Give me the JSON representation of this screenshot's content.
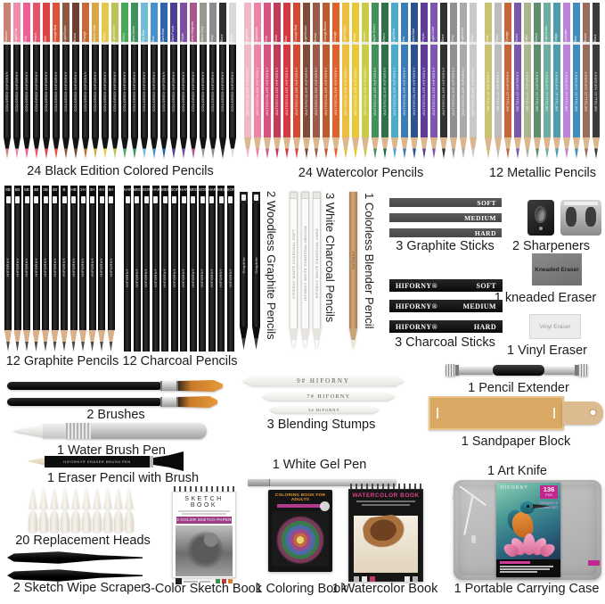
{
  "captions": {
    "black_colored": "24 Black Edition Colored Pencils",
    "watercolor": "24 Watercolor Pencils",
    "metallic": "12 Metallic Pencils",
    "graphite": "12 Graphite Pencils",
    "charcoal": "12 Charcoal Pencils",
    "woodless": "2 Woodless Graphite Pencils",
    "white_charcoal": "3 White Charcoal Pencils",
    "blender": "1 Colorless Blender Pencil",
    "graphite_sticks": "3 Graphite Sticks",
    "sharpeners": "2 Sharpeners",
    "kneaded_eraser": "1 kneaded Eraser",
    "charcoal_sticks": "3 Charcoal Sticks",
    "vinyl_eraser": "1 Vinyl Eraser",
    "brushes": "2 Brushes",
    "blending_stumps": "3 Blending Stumps",
    "pencil_extender": "1 Pencil Extender",
    "water_brush_pen": "1 Water Brush Pen",
    "sandpaper_block": "1 Sandpaper Block",
    "eraser_pencil": "1 Eraser Pencil with Brush",
    "white_gel_pen": "1 White Gel Pen",
    "art_knife": "1 Art Knife",
    "replacement_heads": "20 Replacement Heads",
    "scraper": "2 Sketch Wipe Scraper",
    "sketch_book": "3-Color Sketch Book",
    "coloring_book": "1 Coloring Book",
    "watercolor_book": "1 Watercolor Book",
    "carrying_case": "1 Portable Carrying Case"
  },
  "pencil_sets": {
    "black_colored": {
      "brand": "HIFORNY",
      "body_text": "COLORED",
      "names": [
        "Salmon",
        "Light Pink",
        "Pink",
        "Peach",
        "Red",
        "Orange Red",
        "Light Brown",
        "Brown",
        "Orange",
        "Amber Gold",
        "Yellow",
        "Light Green",
        "Green",
        "Dark Green",
        "Sky Blue",
        "Blue",
        "Dark Blue",
        "Dark Purple",
        "Purple",
        "Deep Magenta",
        "Warm Grey",
        "Grey",
        "Black",
        "White"
      ],
      "colors": [
        "#c98273",
        "#f08bab",
        "#ec5f95",
        "#e4546b",
        "#dd4145",
        "#e05238",
        "#8d5a41",
        "#6f4032",
        "#c86a38",
        "#d9a844",
        "#e3c94f",
        "#bcc355",
        "#49a858",
        "#3f9160",
        "#72bcd8",
        "#4492cf",
        "#2f63ab",
        "#4a3f92",
        "#7c4fa0",
        "#a85590",
        "#99988e",
        "#8c8c8c",
        "#2e2e2e",
        "#d9d9d9"
      ]
    },
    "watercolor": {
      "brand": "HIFORNY",
      "body_text": "WATERCOLOR",
      "names": [
        "Light Pink",
        "Light Rose",
        "Pink",
        "Rose",
        "Red",
        "Orange Red",
        "Light Brown",
        "Brown",
        "Orange Brown",
        "Orange",
        "Light Yellow",
        "Yellow",
        "Lemon",
        "Apple Green",
        "Green",
        "Light Blue",
        "Sea",
        "Dark Blue",
        "Purple",
        "Light Violet",
        "Black",
        "Grey",
        "Light Grey",
        "Silver"
      ],
      "colors": [
        "#f0b9c7",
        "#ee83a6",
        "#d65480",
        "#c23a5c",
        "#d23a40",
        "#d44930",
        "#7d4b39",
        "#9a5c46",
        "#bb5c30",
        "#e4602a",
        "#eabf3e",
        "#e8c934",
        "#c9cc4b",
        "#41915a",
        "#2f7048",
        "#4aabca",
        "#3a7cb3",
        "#2d5191",
        "#5e3c99",
        "#7e55b2",
        "#303030",
        "#8f8f8f",
        "#aaaaa8",
        "#c9c9c9"
      ]
    },
    "metallic": {
      "brand": "HIFORNY",
      "body_text": "METALLIC",
      "names": [
        "Gold",
        "Silver",
        "Orange",
        "Violet",
        "Olive",
        "Green",
        "Light Green",
        "Indigo",
        "Lavender",
        "Blue",
        "Brown",
        "Black"
      ],
      "colors": [
        "#c9c272",
        "#bcbcbc",
        "#c2683a",
        "#7a58ab",
        "#aab48e",
        "#5d8e6d",
        "#6fae9e",
        "#4f9dac",
        "#bb82d6",
        "#3f8dbb",
        "#9a6c5c",
        "#3b3b3b"
      ]
    },
    "graphite": {
      "brand": "HIFORNY",
      "grades": [
        "8B",
        "6B",
        "5B",
        "4B",
        "3B",
        "2B",
        "B",
        "HB",
        "2H",
        "3H",
        "4H",
        "5H"
      ]
    },
    "charcoal": {
      "brand": "HIFORNY",
      "grades": [
        "HARD",
        "MED",
        "SOFT",
        "HARD",
        "MED",
        "SOFT",
        "HARD",
        "MED",
        "SOFT",
        "HARD",
        "MED",
        "SOFT"
      ]
    },
    "woodless": {
      "body_text": "Graphite"
    },
    "white_charcoal": {
      "texts": [
        "HIFORNY WHITE CHARCOAL SOFT",
        "HIFORNY WHITE CHARCOAL MEDIUM",
        "HIFORNY WHITE CHARCOAL HARD"
      ]
    },
    "blender": {
      "body_text": "HIFORNY"
    }
  },
  "sticks": {
    "graphite": {
      "grades": [
        "SOFT",
        "MEDIUM",
        "HARD"
      ]
    },
    "charcoal": {
      "brand": "HIFORNY®",
      "grades": [
        "SOFT",
        "MEDIUM",
        "HARD"
      ]
    }
  },
  "erasers": {
    "kneaded_text": "Kneaded Eraser",
    "vinyl_text": "Vinyl Eraser"
  },
  "stumps": {
    "texts": [
      "9#  HIFORNY",
      "7#  HIFORNY",
      "5#  HIFORNY"
    ]
  },
  "eraser_pencil_text": "HIFORNY®   ERASER BRUSH PEN",
  "counts": {
    "replacement_heads": 20
  },
  "books": {
    "sketch": {
      "title": "SKETCH BOOK",
      "banner": "3-COLOR SKETCH PAPER"
    },
    "coloring": {
      "title": "COLORING BOOK FOR ADULTS"
    },
    "watercolor": {
      "title": "WATERCOLOR BOOK"
    }
  },
  "case": {
    "brand": "HIFORNY",
    "badge_number": "136",
    "badge_unit": "PCS",
    "subtitle": "DRAWING & SKETCHING SET"
  },
  "colors": {
    "accent_magenta": "#c2278f",
    "banner_purple": "#9c3f85",
    "label_text": "#1c1c1c",
    "bristle_orange": "#e89a3a"
  }
}
